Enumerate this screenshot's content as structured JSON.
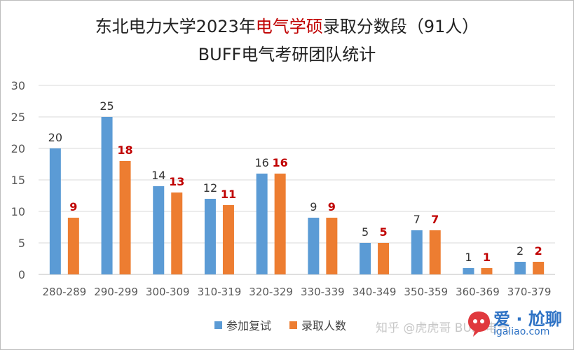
{
  "title": {
    "line1_pre": "东北电力大学2023年",
    "line1_hl": "电气学硕",
    "line1_post": "录取分数段（91人）",
    "line2": "BUFF电气考研团队统计"
  },
  "legend": {
    "s1": "参加复试",
    "s2": "录取人数"
  },
  "watermark": {
    "text": "知乎 @虎虎哥 BUFF电气",
    "brand": "爱 · 尬聊",
    "url": "igaliao.com"
  },
  "colors": {
    "series1": "#5b9bd5",
    "series2": "#ed7d31",
    "label2": "#c00000",
    "grid": "#d9d9d9",
    "axis": "#595959",
    "accent": "#c00000"
  },
  "chart_data": {
    "type": "bar",
    "title": "东北电力大学2023年电气学硕录取分数段（91人）",
    "subtitle": "BUFF电气考研团队统计",
    "categories": [
      "280-289",
      "290-299",
      "300-309",
      "310-319",
      "320-329",
      "330-339",
      "340-349",
      "350-359",
      "360-369",
      "370-379"
    ],
    "series": [
      {
        "name": "参加复试",
        "values": [
          20,
          25,
          14,
          12,
          16,
          9,
          5,
          7,
          1,
          2
        ]
      },
      {
        "name": "录取人数",
        "values": [
          9,
          18,
          13,
          11,
          16,
          9,
          5,
          7,
          1,
          2
        ]
      }
    ],
    "ylim": [
      0,
      30
    ],
    "yticks": [
      0,
      5,
      10,
      15,
      20,
      25,
      30
    ],
    "grid": true,
    "legend": "bottom"
  }
}
